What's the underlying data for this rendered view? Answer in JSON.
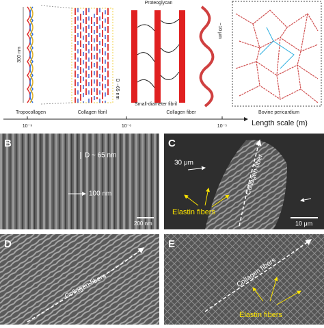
{
  "panel_a": {
    "annotations": [
      "300 nm",
      "D ~65 nm",
      "Proteoglycan",
      "Small-diameter fibril",
      "~10 μm"
    ],
    "stages": [
      "Tropocollagen",
      "Collagen fibril",
      "Collagen fiber",
      "Bovine pericardium"
    ],
    "scale_ticks": [
      "10⁻⁹",
      "10⁻⁶",
      "10⁻⁵"
    ],
    "scale_label": "Length scale (m)"
  },
  "panel_b": {
    "label": "B",
    "annotations": [
      "D ~ 65 nm",
      "100 nm"
    ],
    "scale_bar": "200 nm"
  },
  "panel_c": {
    "label": "C",
    "annotations": [
      "30 μm",
      "Collagen fiber",
      "Elastin fibers"
    ],
    "scale_bar": "10 μm"
  },
  "panel_d": {
    "label": "D",
    "annotations": [
      "Collagen fibers"
    ]
  },
  "panel_e": {
    "label": "E",
    "annotations": [
      "Collagen fibers",
      "Elastin fibers"
    ]
  }
}
